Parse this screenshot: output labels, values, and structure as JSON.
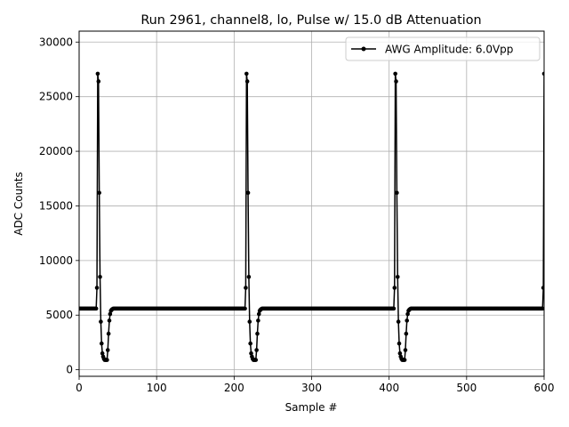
{
  "chart_data": {
    "type": "line",
    "title": "Run 2961, channel8, lo, Pulse w/ 15.0 dB Attenuation",
    "xlabel": "Sample #",
    "ylabel": "ADC Counts",
    "xlim": [
      0,
      600
    ],
    "ylim": [
      -600,
      31000
    ],
    "xticks": [
      0,
      100,
      200,
      300,
      400,
      500,
      600
    ],
    "yticks": [
      0,
      5000,
      10000,
      15000,
      20000,
      25000,
      30000
    ],
    "grid": true,
    "legend_placement": "upper-right",
    "series": [
      {
        "name": "AWG Amplitude: 6.0Vpp",
        "color": "#000000",
        "marker": "circle",
        "baseline": 5600,
        "pulse_starts": [
          23,
          215,
          407,
          599
        ],
        "pulse_shape": [
          7500,
          27100,
          26400,
          16200,
          8500,
          4400,
          2400,
          1500,
          1200,
          1000,
          900,
          900,
          900,
          900,
          1800,
          3300,
          4500,
          5100,
          5400,
          5500,
          5550
        ]
      }
    ]
  }
}
